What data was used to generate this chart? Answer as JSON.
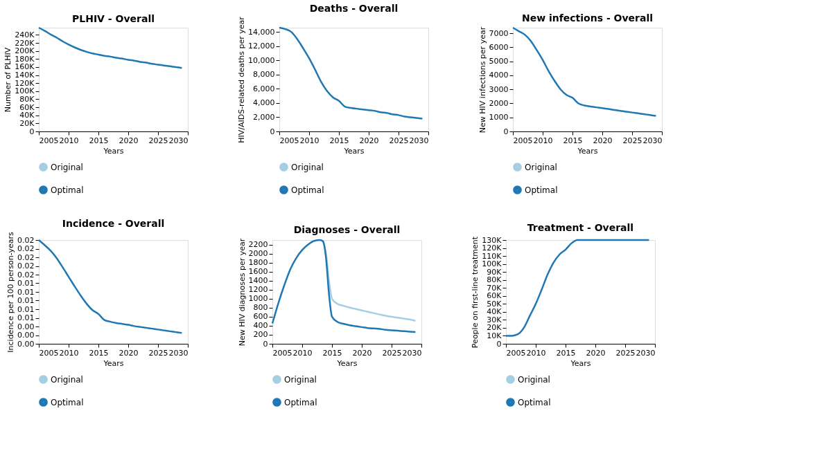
{
  "chart_data": [
    {
      "type": "line",
      "title": "PLHIV - Overall",
      "xlabel": "Years",
      "ylabel": "Number of PLHIV",
      "legend": "bottom left",
      "grid": false,
      "x": [
        2005,
        2006,
        2007,
        2008,
        2009,
        2010,
        2011,
        2012,
        2013,
        2014,
        2015,
        2016,
        2017,
        2018,
        2019,
        2020,
        2021,
        2022,
        2023,
        2024,
        2025,
        2026,
        2027,
        2028,
        2029
      ],
      "xlim": [
        2005,
        2030
      ],
      "xticks": [
        2005,
        2010,
        2015,
        2020,
        2025,
        2030
      ],
      "ylim": [
        0,
        258000
      ],
      "yticks": [
        0,
        {
          "value": 20000,
          "label": "20K"
        },
        {
          "value": 40000,
          "label": "40K"
        },
        {
          "value": 60000,
          "label": "60K"
        },
        {
          "value": 80000,
          "label": "80K"
        },
        {
          "value": 100000,
          "label": "100K"
        },
        {
          "value": 120000,
          "label": "120K"
        },
        {
          "value": 140000,
          "label": "140K"
        },
        {
          "value": 160000,
          "label": "160K"
        },
        {
          "value": 180000,
          "label": "180K"
        },
        {
          "value": 200000,
          "label": "200K"
        },
        {
          "value": 220000,
          "label": "220K"
        },
        {
          "value": 240000,
          "label": "240K"
        }
      ],
      "series": [
        {
          "name": "Original",
          "color": "#a6cee3",
          "values": [
            null,
            null,
            null,
            null,
            null,
            null,
            null,
            null,
            null,
            null,
            null,
            null,
            null,
            null,
            null,
            null,
            null,
            null,
            null,
            null,
            null,
            null,
            null,
            null,
            null
          ]
        },
        {
          "name": "Optimal",
          "color": "#1f78b4",
          "values": [
            258000,
            250000,
            241000,
            233000,
            224000,
            216000,
            209000,
            203000,
            198000,
            194000,
            191000,
            188000,
            186000,
            183000,
            181000,
            178000,
            176000,
            173000,
            171000,
            168000,
            166000,
            164000,
            162000,
            160000,
            158000
          ]
        }
      ]
    },
    {
      "type": "line",
      "title": "Deaths - Overall",
      "xlabel": "Years",
      "ylabel": "HIV/AIDS-related deaths per year",
      "legend": "bottom left",
      "grid": false,
      "x": [
        2005,
        2006,
        2007,
        2008,
        2009,
        2010,
        2011,
        2012,
        2013,
        2014,
        2015,
        2016,
        2017,
        2018,
        2019,
        2020,
        2021,
        2022,
        2023,
        2024,
        2025,
        2026,
        2027,
        2028,
        2029
      ],
      "xlim": [
        2005,
        2030
      ],
      "xticks": [
        2005,
        2010,
        2015,
        2020,
        2025,
        2030
      ],
      "ylim": [
        0,
        14600
      ],
      "yticks": [
        0,
        {
          "value": 2000,
          "label": "2,000"
        },
        {
          "value": 4000,
          "label": "4,000"
        },
        {
          "value": 6000,
          "label": "6,000"
        },
        {
          "value": 8000,
          "label": "8,000"
        },
        {
          "value": 10000,
          "label": "10,000"
        },
        {
          "value": 12000,
          "label": "12,000"
        },
        {
          "value": 14000,
          "label": "14,000"
        }
      ],
      "series": [
        {
          "name": "Original",
          "color": "#a6cee3",
          "values": [
            null,
            null,
            null,
            null,
            null,
            null,
            null,
            null,
            null,
            null,
            null,
            null,
            null,
            null,
            null,
            null,
            null,
            null,
            null,
            null,
            null,
            null,
            null,
            null,
            null
          ]
        },
        {
          "name": "Optimal",
          "color": "#1f78b4",
          "values": [
            14600,
            14400,
            14000,
            13000,
            11700,
            10300,
            8700,
            7000,
            5700,
            4800,
            4300,
            3500,
            3300,
            3200,
            3100,
            3000,
            2900,
            2700,
            2600,
            2400,
            2300,
            2100,
            2000,
            1900,
            1800
          ]
        }
      ]
    },
    {
      "type": "line",
      "title": "New infections - Overall",
      "xlabel": "Years",
      "ylabel": "New HIV infections per year",
      "legend": "bottom left",
      "grid": false,
      "x": [
        2005,
        2006,
        2007,
        2008,
        2009,
        2010,
        2011,
        2012,
        2013,
        2014,
        2015,
        2016,
        2017,
        2018,
        2019,
        2020,
        2021,
        2022,
        2023,
        2024,
        2025,
        2026,
        2027,
        2028,
        2029
      ],
      "xlim": [
        2005,
        2030
      ],
      "xticks": [
        2005,
        2010,
        2015,
        2020,
        2025,
        2030
      ],
      "ylim": [
        0,
        7400
      ],
      "yticks": [
        0,
        1000,
        2000,
        3000,
        4000,
        5000,
        6000,
        7000
      ],
      "series": [
        {
          "name": "Original",
          "color": "#a6cee3",
          "values": [
            null,
            null,
            null,
            null,
            null,
            null,
            null,
            null,
            null,
            null,
            null,
            null,
            null,
            null,
            null,
            null,
            null,
            null,
            null,
            null,
            null,
            null,
            null,
            null,
            null
          ]
        },
        {
          "name": "Optimal",
          "color": "#1f78b4",
          "values": [
            7400,
            7150,
            6900,
            6450,
            5800,
            5100,
            4300,
            3600,
            3000,
            2600,
            2400,
            2000,
            1850,
            1780,
            1720,
            1660,
            1600,
            1530,
            1470,
            1410,
            1350,
            1290,
            1230,
            1170,
            1110
          ]
        }
      ]
    },
    {
      "type": "line",
      "title": "Incidence - Overall",
      "xlabel": "Years",
      "ylabel": "Incidence per 100 person-years",
      "legend": "bottom left",
      "grid": false,
      "x": [
        2005,
        2006,
        2007,
        2008,
        2009,
        2010,
        2011,
        2012,
        2013,
        2014,
        2015,
        2016,
        2017,
        2018,
        2019,
        2020,
        2021,
        2022,
        2023,
        2024,
        2025,
        2026,
        2027,
        2028,
        2029
      ],
      "xlim": [
        2005,
        2030
      ],
      "xticks": [
        2005,
        2010,
        2015,
        2020,
        2025,
        2030
      ],
      "ylim": [
        0,
        0.024
      ],
      "yticks": [
        {
          "value": 0,
          "label": "0.00"
        },
        {
          "value": 0.002,
          "label": "0.00"
        },
        {
          "value": 0.004,
          "label": "0.00"
        },
        {
          "value": 0.006,
          "label": "0.01"
        },
        {
          "value": 0.008,
          "label": "0.01"
        },
        {
          "value": 0.01,
          "label": "0.01"
        },
        {
          "value": 0.012,
          "label": "0.01"
        },
        {
          "value": 0.014,
          "label": "0.01"
        },
        {
          "value": 0.016,
          "label": "0.02"
        },
        {
          "value": 0.018,
          "label": "0.02"
        },
        {
          "value": 0.02,
          "label": "0.02"
        },
        {
          "value": 0.022,
          "label": "0.02"
        },
        {
          "value": 0.024,
          "label": "0.02"
        }
      ],
      "series": [
        {
          "name": "Original",
          "color": "#a6cee3",
          "values": [
            null,
            null,
            null,
            null,
            null,
            null,
            null,
            null,
            null,
            null,
            null,
            null,
            null,
            null,
            null,
            null,
            null,
            null,
            null,
            null,
            null,
            null,
            null,
            null,
            null
          ]
        },
        {
          "name": "Optimal",
          "color": "#1f78b4",
          "values": [
            0.024,
            0.0228,
            0.0215,
            0.0198,
            0.0177,
            0.0155,
            0.0133,
            0.0112,
            0.0093,
            0.0078,
            0.0069,
            0.0055,
            0.0051,
            0.0048,
            0.0046,
            0.0044,
            0.0041,
            0.0039,
            0.0037,
            0.0035,
            0.0033,
            0.0031,
            0.0029,
            0.0027,
            0.0025
          ]
        }
      ]
    },
    {
      "type": "line",
      "title": "Diagnoses - Overall",
      "xlabel": "Years",
      "ylabel": "New HIV diagnoses per year",
      "legend": "bottom left",
      "grid": false,
      "xlim": [
        2005,
        2030
      ],
      "xticks": [
        2005,
        2010,
        2015,
        2020,
        2025,
        2030
      ],
      "ylim": [
        0,
        2300
      ],
      "yticks": [
        0,
        200,
        400,
        600,
        800,
        1000,
        1200,
        1400,
        1600,
        1800,
        2000,
        2200
      ],
      "series": [
        {
          "name": "Original",
          "color": "#a6cee3",
          "x": [
            2013.5,
            2014,
            2014.5,
            2015,
            2016,
            2017,
            2018,
            2019,
            2020,
            2021,
            2022,
            2023,
            2024,
            2025,
            2026,
            2027,
            2028,
            2029
          ],
          "values": [
            2270,
            2000,
            1400,
            1000,
            880,
            840,
            800,
            770,
            740,
            710,
            680,
            650,
            620,
            600,
            580,
            560,
            540,
            510
          ]
        },
        {
          "name": "Optimal",
          "color": "#1f78b4",
          "x": [
            2005,
            2006,
            2007,
            2008,
            2009,
            2010,
            2011,
            2012,
            2013,
            2013.5,
            2014,
            2014.5,
            2015,
            2016,
            2017,
            2018,
            2019,
            2020,
            2021,
            2022,
            2023,
            2024,
            2025,
            2026,
            2027,
            2028,
            2029
          ],
          "values": [
            450,
            900,
            1300,
            1650,
            1900,
            2080,
            2200,
            2280,
            2300,
            2270,
            1900,
            1100,
            600,
            480,
            440,
            410,
            390,
            370,
            350,
            340,
            330,
            310,
            300,
            290,
            280,
            270,
            260
          ]
        }
      ]
    },
    {
      "type": "line",
      "title": "Treatment - Overall",
      "xlabel": "Years",
      "ylabel": "People on first-line treatment",
      "legend": "bottom left",
      "grid": false,
      "x": [
        2005,
        2006,
        2007,
        2008,
        2009,
        2010,
        2011,
        2012,
        2013,
        2014,
        2015,
        2016,
        2017,
        2018,
        2019,
        2020,
        2021,
        2022,
        2023,
        2024,
        2025,
        2026,
        2027,
        2028,
        2029
      ],
      "xlim": [
        2005,
        2030
      ],
      "xticks": [
        2005,
        2010,
        2015,
        2020,
        2025,
        2030
      ],
      "ylim": [
        0,
        130000
      ],
      "yticks": [
        0,
        {
          "value": 10000,
          "label": "10K"
        },
        {
          "value": 20000,
          "label": "20K"
        },
        {
          "value": 30000,
          "label": "30K"
        },
        {
          "value": 40000,
          "label": "40K"
        },
        {
          "value": 50000,
          "label": "50K"
        },
        {
          "value": 60000,
          "label": "60K"
        },
        {
          "value": 70000,
          "label": "70K"
        },
        {
          "value": 80000,
          "label": "80K"
        },
        {
          "value": 90000,
          "label": "90K"
        },
        {
          "value": 100000,
          "label": "100K"
        },
        {
          "value": 110000,
          "label": "110K"
        },
        {
          "value": 120000,
          "label": "120K"
        },
        {
          "value": 130000,
          "label": "130K"
        }
      ],
      "series": [
        {
          "name": "Original",
          "color": "#a6cee3",
          "values": [
            null,
            null,
            null,
            null,
            null,
            null,
            null,
            null,
            null,
            null,
            null,
            null,
            null,
            null,
            null,
            null,
            null,
            null,
            null,
            null,
            null,
            null,
            null,
            null,
            null
          ]
        },
        {
          "name": "Optimal",
          "color": "#1f78b4",
          "values": [
            10000,
            10000,
            12000,
            20000,
            35000,
            50000,
            68000,
            87000,
            102000,
            112000,
            118000,
            126000,
            130000,
            130000,
            130000,
            130000,
            130000,
            130000,
            130000,
            130000,
            130000,
            130000,
            130000,
            130000,
            130000
          ]
        }
      ]
    }
  ]
}
